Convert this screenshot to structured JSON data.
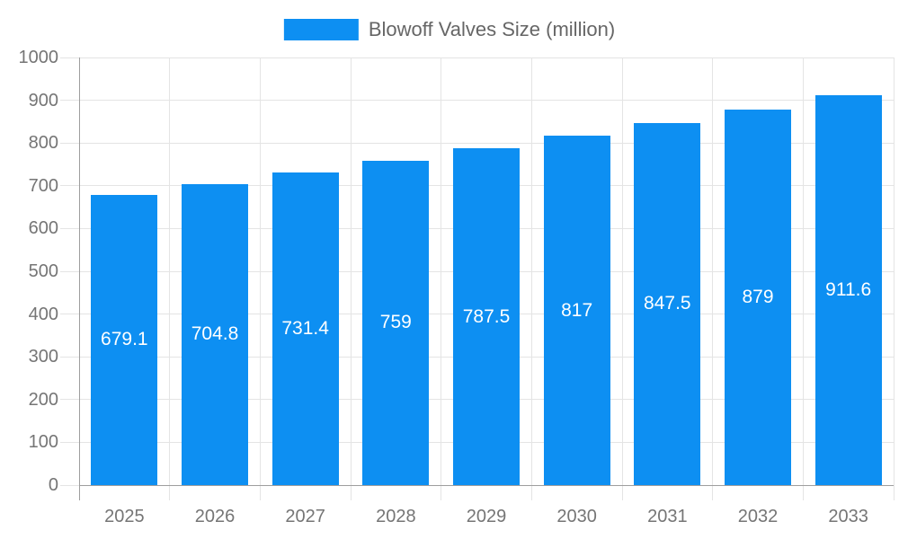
{
  "legend": {
    "label": "Blowoff Valves Size (million)"
  },
  "colors": {
    "bar": "#0d8ff2",
    "grid": "#e4e4e4",
    "axis": "#9e9e9e",
    "tick_text": "#757575",
    "legend_text": "#666666",
    "value_text": "#ffffff",
    "background": "#ffffff"
  },
  "chart_data": {
    "type": "bar",
    "title": "Blowoff Valves Size (million)",
    "series_name": "Blowoff Valves Size (million)",
    "categories": [
      "2025",
      "2026",
      "2027",
      "2028",
      "2029",
      "2030",
      "2031",
      "2032",
      "2033"
    ],
    "values": [
      679.1,
      704.8,
      731.4,
      759,
      787.5,
      817,
      847.5,
      879,
      911.6
    ],
    "xlabel": "",
    "ylabel": "",
    "ylim": [
      0,
      1000
    ],
    "ytick_step": 100,
    "ytick_labels": [
      "0",
      "100",
      "200",
      "300",
      "400",
      "500",
      "600",
      "700",
      "800",
      "900",
      "1000"
    ],
    "grid": true,
    "legend_position": "top",
    "bar_labels": "centered-white"
  }
}
